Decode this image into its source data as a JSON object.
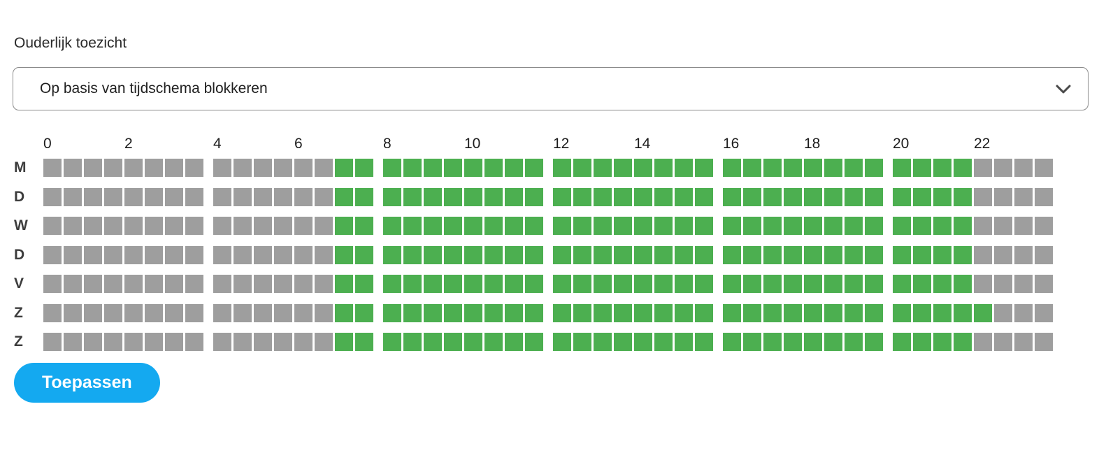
{
  "title": "Ouderlijk toezicht",
  "dropdown": {
    "selected_option": "Op basis van tijdschema blokkeren"
  },
  "schedule": {
    "hour_labels": [
      "0",
      "2",
      "4",
      "6",
      "8",
      "10",
      "12",
      "14",
      "16",
      "18",
      "20",
      "22"
    ],
    "cell_minutes": 30,
    "days": [
      {
        "key": "monday",
        "label": "M",
        "cells": [
          0,
          0,
          0,
          0,
          0,
          0,
          0,
          0,
          0,
          0,
          0,
          0,
          0,
          0,
          1,
          1,
          1,
          1,
          1,
          1,
          1,
          1,
          1,
          1,
          1,
          1,
          1,
          1,
          1,
          1,
          1,
          1,
          1,
          1,
          1,
          1,
          1,
          1,
          1,
          1,
          1,
          1,
          1,
          1,
          0,
          0,
          0,
          0
        ]
      },
      {
        "key": "tuesday",
        "label": "D",
        "cells": [
          0,
          0,
          0,
          0,
          0,
          0,
          0,
          0,
          0,
          0,
          0,
          0,
          0,
          0,
          1,
          1,
          1,
          1,
          1,
          1,
          1,
          1,
          1,
          1,
          1,
          1,
          1,
          1,
          1,
          1,
          1,
          1,
          1,
          1,
          1,
          1,
          1,
          1,
          1,
          1,
          1,
          1,
          1,
          1,
          0,
          0,
          0,
          0
        ]
      },
      {
        "key": "wednesday",
        "label": "W",
        "cells": [
          0,
          0,
          0,
          0,
          0,
          0,
          0,
          0,
          0,
          0,
          0,
          0,
          0,
          0,
          1,
          1,
          1,
          1,
          1,
          1,
          1,
          1,
          1,
          1,
          1,
          1,
          1,
          1,
          1,
          1,
          1,
          1,
          1,
          1,
          1,
          1,
          1,
          1,
          1,
          1,
          1,
          1,
          1,
          1,
          0,
          0,
          0,
          0
        ]
      },
      {
        "key": "thursday",
        "label": "D",
        "cells": [
          0,
          0,
          0,
          0,
          0,
          0,
          0,
          0,
          0,
          0,
          0,
          0,
          0,
          0,
          1,
          1,
          1,
          1,
          1,
          1,
          1,
          1,
          1,
          1,
          1,
          1,
          1,
          1,
          1,
          1,
          1,
          1,
          1,
          1,
          1,
          1,
          1,
          1,
          1,
          1,
          1,
          1,
          1,
          1,
          0,
          0,
          0,
          0
        ]
      },
      {
        "key": "friday",
        "label": "V",
        "cells": [
          0,
          0,
          0,
          0,
          0,
          0,
          0,
          0,
          0,
          0,
          0,
          0,
          0,
          0,
          1,
          1,
          1,
          1,
          1,
          1,
          1,
          1,
          1,
          1,
          1,
          1,
          1,
          1,
          1,
          1,
          1,
          1,
          1,
          1,
          1,
          1,
          1,
          1,
          1,
          1,
          1,
          1,
          1,
          1,
          0,
          0,
          0,
          0
        ]
      },
      {
        "key": "saturday",
        "label": "Z",
        "cells": [
          0,
          0,
          0,
          0,
          0,
          0,
          0,
          0,
          0,
          0,
          0,
          0,
          0,
          0,
          1,
          1,
          1,
          1,
          1,
          1,
          1,
          1,
          1,
          1,
          1,
          1,
          1,
          1,
          1,
          1,
          1,
          1,
          1,
          1,
          1,
          1,
          1,
          1,
          1,
          1,
          1,
          1,
          1,
          1,
          1,
          0,
          0,
          0
        ]
      },
      {
        "key": "sunday",
        "label": "Z",
        "cells": [
          0,
          0,
          0,
          0,
          0,
          0,
          0,
          0,
          0,
          0,
          0,
          0,
          0,
          0,
          1,
          1,
          1,
          1,
          1,
          1,
          1,
          1,
          1,
          1,
          1,
          1,
          1,
          1,
          1,
          1,
          1,
          1,
          1,
          1,
          1,
          1,
          1,
          1,
          1,
          1,
          1,
          1,
          1,
          1,
          0,
          0,
          0,
          0
        ]
      }
    ]
  },
  "apply_button": {
    "label": "Toepassen"
  },
  "colors": {
    "scheduled_green": "#4caf50",
    "unscheduled_gray": "#9e9e9e",
    "apply_blue": "#14a9f0"
  }
}
